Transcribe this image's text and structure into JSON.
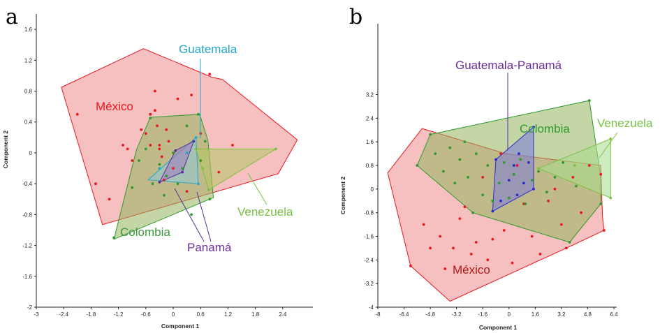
{
  "figure_labels": [
    "a",
    "b"
  ],
  "chart_data": [
    {
      "type": "scatter",
      "panel": "a",
      "xlabel": "Component 1",
      "ylabel": "Component 2",
      "xlim": [
        -3,
        3
      ],
      "ylim": [
        -2,
        1.8
      ],
      "xticks": [
        -3,
        -2.4,
        -1.8,
        -1.2,
        -0.6,
        0,
        0.6,
        1.2,
        1.8,
        2.4
      ],
      "yticks": [
        -2,
        -1.6,
        -1.2,
        -0.8,
        -0.4,
        0,
        0.4,
        0.8,
        1.2,
        1.6
      ],
      "xtick_labels": [
        "-3",
        "-2.4",
        "-1.8",
        "-1.2",
        "-0.6",
        "0",
        "0.6",
        "1.2",
        "1.8",
        "2.4"
      ],
      "ytick_labels": [
        "-2",
        "-1.6",
        "-1.2",
        "-0.8",
        "-0.4",
        "0",
        "0.4",
        "0.8",
        "1.2",
        "1.6"
      ],
      "groups": [
        {
          "name": "México",
          "label": "México",
          "color": "#e8191d",
          "fill": "#f08c8c",
          "hull": [
            [
              -2.45,
              0.85
            ],
            [
              -0.65,
              1.35
            ],
            [
              0.85,
              0.98
            ],
            [
              1.08,
              0.95
            ],
            [
              2.72,
              0.17
            ],
            [
              2.3,
              -0.27
            ],
            [
              -1.55,
              -0.93
            ]
          ],
          "points": [
            [
              -2.1,
              0.5
            ],
            [
              -1.7,
              -0.4
            ],
            [
              -1.4,
              -0.6
            ],
            [
              -1.1,
              0.1
            ],
            [
              -1.0,
              0.05
            ],
            [
              -0.9,
              -0.1
            ],
            [
              -0.7,
              0.3
            ],
            [
              -0.6,
              0.25
            ],
            [
              -0.5,
              0.1
            ],
            [
              -0.5,
              0.5
            ],
            [
              -0.4,
              0.8
            ],
            [
              -0.4,
              0.55
            ],
            [
              -0.35,
              0.35
            ],
            [
              -0.3,
              0.1
            ],
            [
              -0.3,
              0.05
            ],
            [
              -0.25,
              -0.05
            ],
            [
              -0.2,
              -0.35
            ],
            [
              -0.15,
              0.3
            ],
            [
              -0.1,
              0.15
            ],
            [
              0.0,
              -0.2
            ],
            [
              0.1,
              0.7
            ],
            [
              0.3,
              -0.5
            ],
            [
              0.4,
              0.75
            ],
            [
              0.6,
              0.25
            ],
            [
              0.8,
              1.02
            ],
            [
              1.0,
              -0.25
            ],
            [
              1.3,
              0.1
            ]
          ]
        },
        {
          "name": "Colombia",
          "label": "Colombia",
          "color": "#2e9a2e",
          "fill": "#93b45c",
          "hull": [
            [
              -1.3,
              -1.12
            ],
            [
              0.88,
              -0.58
            ],
            [
              0.76,
              0.16
            ],
            [
              0.58,
              0.5
            ],
            [
              -0.5,
              0.46
            ],
            [
              -0.8,
              0.05
            ]
          ],
          "points": [
            [
              -1.3,
              -1.1
            ],
            [
              -0.9,
              -0.45
            ],
            [
              -0.75,
              -0.1
            ],
            [
              -0.6,
              0.05
            ],
            [
              -0.5,
              0.45
            ],
            [
              -0.45,
              -0.4
            ],
            [
              -0.3,
              -0.15
            ],
            [
              -0.2,
              -0.55
            ],
            [
              -0.15,
              -0.3
            ],
            [
              0.0,
              0.0
            ],
            [
              0.1,
              -0.4
            ],
            [
              0.2,
              -0.2
            ],
            [
              0.3,
              0.35
            ],
            [
              0.4,
              -0.8
            ],
            [
              0.55,
              0.5
            ],
            [
              0.6,
              -0.1
            ],
            [
              0.7,
              0.15
            ],
            [
              0.8,
              -0.6
            ]
          ]
        },
        {
          "name": "Guatemala",
          "label": "Guatemala",
          "color": "#23a6c8",
          "fill": "#8ccbd8",
          "hull": [
            [
              -0.55,
              -0.35
            ],
            [
              0.5,
              0.2
            ],
            [
              0.55,
              -0.4
            ]
          ],
          "points": [
            [
              -0.3,
              -0.2
            ],
            [
              0.5,
              0.2
            ],
            [
              0.55,
              -0.4
            ],
            [
              0.3,
              0.0
            ]
          ]
        },
        {
          "name": "Panamá",
          "label": "Panamá",
          "color": "#5a2e9a",
          "fill": "#a07ac0",
          "hull": [
            [
              -0.3,
              -0.38
            ],
            [
              0.2,
              -0.25
            ],
            [
              0.45,
              0.15
            ],
            [
              0.05,
              0.03
            ]
          ],
          "points": [
            [
              -0.3,
              -0.38
            ],
            [
              0.2,
              -0.25
            ],
            [
              0.45,
              0.15
            ],
            [
              0.05,
              0.03
            ]
          ]
        },
        {
          "name": "Venezuela",
          "label": "Venezuela",
          "color": "#7ac142",
          "fill": "#b5c765",
          "hull": [
            [
              0.5,
              0.05
            ],
            [
              2.25,
              0.05
            ],
            [
              0.78,
              -0.48
            ]
          ],
          "points": [
            [
              0.5,
              0.05
            ],
            [
              2.25,
              0.05
            ],
            [
              0.78,
              -0.48
            ],
            [
              0.65,
              -0.2
            ]
          ]
        }
      ]
    },
    {
      "type": "scatter",
      "panel": "b",
      "xlabel": "Component 1",
      "ylabel": "Component 2",
      "xlim": [
        -8,
        6.4
      ],
      "ylim": [
        -4,
        5.6
      ],
      "xticks": [
        -8,
        -6.4,
        -4.8,
        -3.2,
        -1.6,
        0,
        1.6,
        3.2,
        4.8,
        6.4
      ],
      "yticks": [
        -4,
        -3.2,
        -2.4,
        -1.6,
        -0.8,
        0,
        0.8,
        1.6,
        2.4,
        3.2
      ],
      "xtick_labels": [
        "-8",
        "-6.4",
        "-4.8",
        "-3.2",
        "-1.6",
        "0",
        "1.6",
        "3.2",
        "4.8",
        "6.4"
      ],
      "ytick_labels": [
        "-4",
        "-3.2",
        "-2.4",
        "-1.6",
        "-0.8",
        "0",
        "0.8",
        "1.6",
        "2.4",
        "3.2"
      ],
      "groups": [
        {
          "name": "México",
          "label": "México",
          "color": "#e8191d",
          "fill": "#f08c8c",
          "hull": [
            [
              -7.4,
              0.55
            ],
            [
              -5.3,
              2.05
            ],
            [
              -0.2,
              1.2
            ],
            [
              5.6,
              0.8
            ],
            [
              5.7,
              -0.9
            ],
            [
              5.8,
              -1.4
            ],
            [
              3.5,
              -2.0
            ],
            [
              -3.6,
              -3.8
            ],
            [
              -6.0,
              -2.6
            ]
          ],
          "points": [
            [
              -6.0,
              -2.6
            ],
            [
              -5.2,
              -1.2
            ],
            [
              -4.8,
              -2.0
            ],
            [
              -4.2,
              -1.6
            ],
            [
              -3.9,
              -2.7
            ],
            [
              -3.4,
              -2.0
            ],
            [
              -3.0,
              -1.0
            ],
            [
              -2.7,
              -0.6
            ],
            [
              -2.3,
              -2.2
            ],
            [
              -2.0,
              -1.8
            ],
            [
              -1.6,
              0.4
            ],
            [
              -1.3,
              -2.4
            ],
            [
              -1.0,
              -1.7
            ],
            [
              -0.5,
              1.2
            ],
            [
              -0.3,
              -1.4
            ],
            [
              0.2,
              -2.5
            ],
            [
              0.5,
              0.8
            ],
            [
              0.9,
              -0.5
            ],
            [
              1.4,
              -1.6
            ],
            [
              1.9,
              -2.2
            ],
            [
              2.4,
              -0.4
            ],
            [
              2.8,
              0.0
            ],
            [
              3.2,
              -1.2
            ],
            [
              3.5,
              -2.0
            ],
            [
              3.9,
              0.4
            ],
            [
              4.4,
              -0.8
            ],
            [
              4.9,
              0.8
            ],
            [
              5.6,
              0.5
            ],
            [
              5.8,
              -1.4
            ]
          ]
        },
        {
          "name": "Colombia",
          "label": "Colombia",
          "color": "#2e9a2e",
          "fill": "#93b45c",
          "hull": [
            [
              -5.6,
              0.8
            ],
            [
              -4.8,
              1.85
            ],
            [
              4.9,
              3.0
            ],
            [
              5.6,
              0.4
            ],
            [
              5.6,
              -0.5
            ],
            [
              3.7,
              -1.8
            ],
            [
              -2.2,
              -0.8
            ]
          ],
          "points": [
            [
              -5.6,
              0.8
            ],
            [
              -4.8,
              1.85
            ],
            [
              -4.5,
              1.2
            ],
            [
              -4.0,
              0.6
            ],
            [
              -3.6,
              1.4
            ],
            [
              -3.3,
              0.2
            ],
            [
              -3.0,
              1.0
            ],
            [
              -2.7,
              1.6
            ],
            [
              -2.5,
              0.4
            ],
            [
              -2.2,
              -0.8
            ],
            [
              -2.0,
              1.2
            ],
            [
              -1.6,
              -0.2
            ],
            [
              -1.3,
              0.8
            ],
            [
              -1.0,
              -0.4
            ],
            [
              -0.6,
              0.2
            ],
            [
              -0.3,
              0.9
            ],
            [
              0.0,
              -0.3
            ],
            [
              0.3,
              0.5
            ],
            [
              0.7,
              1.0
            ],
            [
              1.0,
              -0.5
            ],
            [
              1.4,
              0.3
            ],
            [
              1.8,
              0.6
            ],
            [
              2.3,
              -0.1
            ],
            [
              2.8,
              0.4
            ],
            [
              3.3,
              0.9
            ],
            [
              3.7,
              -1.8
            ],
            [
              4.1,
              0.1
            ],
            [
              4.9,
              3.0
            ],
            [
              5.6,
              -0.5
            ]
          ]
        },
        {
          "name": "Guatemala-Panamá",
          "label": "Guatemala-Panamá",
          "color": "#2a2acc",
          "fill": "#7a7ad8",
          "hull": [
            [
              -1.0,
              -0.75
            ],
            [
              -0.8,
              1.0
            ],
            [
              1.5,
              2.1
            ],
            [
              1.5,
              0.0
            ]
          ],
          "points": [
            [
              -1.0,
              -0.75
            ],
            [
              -0.8,
              1.0
            ],
            [
              -0.5,
              -0.4
            ],
            [
              0.0,
              0.3
            ],
            [
              0.3,
              0.8
            ],
            [
              0.6,
              1.2
            ],
            [
              0.9,
              0.2
            ],
            [
              1.2,
              0.9
            ],
            [
              1.5,
              2.1
            ],
            [
              1.5,
              0.0
            ],
            [
              0.5,
              -0.2
            ]
          ]
        },
        {
          "name": "Venezuela",
          "label": "Venezuela",
          "color": "#7ac142",
          "fill": "#a8dc8c",
          "hull": [
            [
              1.8,
              0.7
            ],
            [
              6.2,
              1.7
            ],
            [
              6.2,
              -0.3
            ]
          ],
          "points": [
            [
              1.8,
              0.7
            ],
            [
              6.2,
              1.7
            ],
            [
              6.2,
              -0.3
            ],
            [
              4.0,
              0.8
            ]
          ]
        }
      ]
    }
  ]
}
